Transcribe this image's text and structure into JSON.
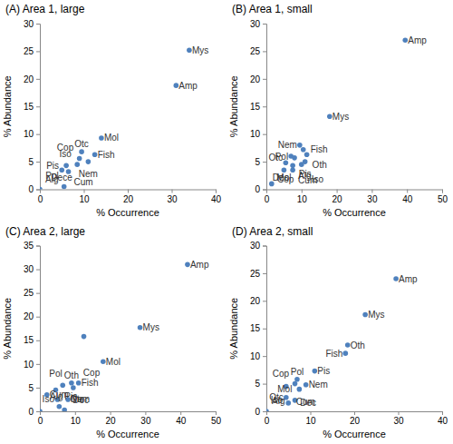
{
  "chart_data": [
    {
      "type": "scatter",
      "title": "(A) Area 1, large",
      "x_label": "% Occurrence",
      "y_label": "% Abundance",
      "color": "#4f81bd",
      "labels": [
        "Mys",
        "Amp",
        "Mol",
        "Fish",
        "Otc",
        "Cop",
        "Pis",
        "Nem",
        "Iso",
        "Dece",
        "Cum",
        "Alg",
        "Pol"
      ],
      "x": [
        34,
        31,
        14,
        12.5,
        9.5,
        9,
        6,
        11,
        8.5,
        5,
        6.5,
        0,
        5.5
      ],
      "values": [
        25.2,
        18.8,
        9.3,
        6.3,
        6.8,
        5.6,
        4.3,
        5.0,
        4.5,
        3.5,
        3.2,
        0,
        0.5
      ],
      "xlim": [
        0,
        40
      ],
      "xticks": [
        0,
        10,
        20,
        30,
        40
      ],
      "ylim": [
        0,
        30
      ],
      "yticks": [
        0,
        5,
        10,
        15,
        20,
        25,
        30
      ]
    },
    {
      "type": "scatter",
      "title": "(B) Area 1, small",
      "x_label": "% Occurrence",
      "y_label": "% Abundance",
      "color": "#4f81bd",
      "labels": [
        "Amp",
        "Mys",
        "Nem",
        "Fish",
        "Oth",
        "Pol",
        "Otc",
        "Pis",
        "Cop",
        "Alg",
        "Iso",
        "Mol",
        "Cum",
        "Dec"
      ],
      "x": [
        39.5,
        18,
        9.5,
        10.5,
        11.5,
        7,
        8,
        11,
        5.5,
        7.5,
        10,
        5,
        7.5,
        1.5
      ],
      "values": [
        27,
        13.2,
        8,
        7.2,
        6.3,
        6,
        5.7,
        5,
        4.8,
        4.3,
        4.5,
        3.5,
        3.5,
        1
      ],
      "xlim": [
        0,
        50
      ],
      "xticks": [
        0,
        10,
        20,
        30,
        40,
        50
      ],
      "ylim": [
        0,
        30
      ],
      "yticks": [
        0,
        5,
        10,
        15,
        20,
        25,
        30
      ]
    },
    {
      "type": "scatter",
      "title": "(C) Area 2, large",
      "x_label": "% Occurrence",
      "y_label": "% Abundance",
      "color": "#4f81bd",
      "labels": [
        "Amp",
        "Mys",
        null,
        "Mol",
        "Oth",
        "Fish",
        "Dec",
        "Cop",
        "Pol",
        "Cum",
        "Iso",
        "Nem",
        "Alg",
        "Pis",
        "Otc"
      ],
      "x": [
        42,
        28.5,
        12.5,
        18,
        9,
        11,
        6.5,
        9.5,
        4.5,
        2,
        5,
        8,
        0,
        5.5,
        7
      ],
      "values": [
        31,
        17.7,
        15.8,
        10.5,
        6,
        6,
        5.5,
        5,
        4.5,
        3.5,
        2.5,
        2.5,
        0,
        1,
        0.3
      ],
      "xlim": [
        0,
        50
      ],
      "xticks": [
        0,
        10,
        20,
        30,
        40,
        50
      ],
      "ylim": [
        0,
        35
      ],
      "yticks": [
        0,
        5,
        10,
        15,
        20,
        25,
        30,
        35
      ]
    },
    {
      "type": "scatter",
      "title": "(D) Area 2, small",
      "x_label": "% Occurrence",
      "y_label": "% Abundance",
      "color": "#4f81bd",
      "labels": [
        "Amp",
        "Mys",
        "Oth",
        "Fish",
        "Pis",
        "Pol",
        "Cop",
        "Nem",
        "Cum",
        "Mol",
        "Otc",
        "Dec",
        "Iso",
        "Alg"
      ],
      "x": [
        29.5,
        22.5,
        18.5,
        18,
        11,
        7,
        6.5,
        9,
        4.5,
        7.5,
        4.5,
        5,
        6.5,
        0
      ],
      "values": [
        24,
        17.5,
        12,
        10.5,
        7.3,
        5.8,
        5,
        4.8,
        4.5,
        4,
        2.5,
        1.5,
        2,
        0
      ],
      "xlim": [
        0,
        40
      ],
      "xticks": [
        0,
        10,
        20,
        30,
        40
      ],
      "ylim": [
        0,
        30
      ],
      "yticks": [
        0,
        5,
        10,
        15,
        20,
        25,
        30
      ]
    }
  ]
}
